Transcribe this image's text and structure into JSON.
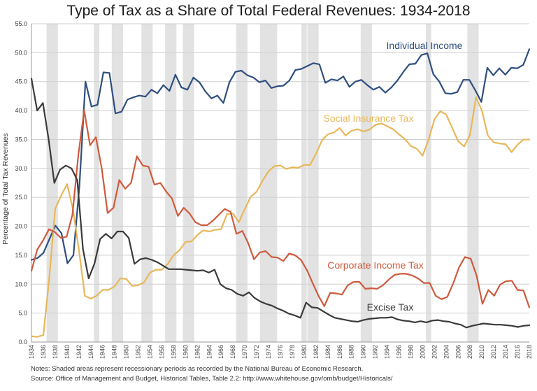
{
  "chart_data": {
    "type": "line",
    "title": "Type of Tax as a Share of Total Federal Revenues: 1934-2018",
    "xlabel": "",
    "ylabel": "Percentage of Total Tax Revenues",
    "ylim": [
      0,
      55
    ],
    "yticks": [
      "0.0",
      "5.0",
      "10.0",
      "15.0",
      "20.0",
      "25.0",
      "30.0",
      "35.0",
      "40.0",
      "45.0",
      "50.0",
      "55.0"
    ],
    "xlim": [
      1934,
      2018
    ],
    "xticks": [
      "1934",
      "1936",
      "1938",
      "1940",
      "1942",
      "1944",
      "1946",
      "1948",
      "1950",
      "1952",
      "1954",
      "1956",
      "1958",
      "1960",
      "1962",
      "1964",
      "1966",
      "1968",
      "1970",
      "1972",
      "1974",
      "1976",
      "1978",
      "1980",
      "1982",
      "1984",
      "1986",
      "1988",
      "1990",
      "1992",
      "1994",
      "1996",
      "1998",
      "2000",
      "2002",
      "2004",
      "2006",
      "2008",
      "2010",
      "2012",
      "2014",
      "2016",
      "2018"
    ],
    "grid": "horizontal",
    "recessions": [
      [
        1937,
        1938
      ],
      [
        1945,
        1945
      ],
      [
        1948,
        1949
      ],
      [
        1953,
        1954
      ],
      [
        1957,
        1958
      ],
      [
        1960,
        1961
      ],
      [
        1969,
        1970
      ],
      [
        1973,
        1975
      ],
      [
        1980,
        1980
      ],
      [
        1981,
        1982
      ],
      [
        1990,
        1991
      ],
      [
        2001,
        2001
      ],
      [
        2008,
        2009
      ]
    ],
    "series": [
      {
        "name": "Individual Income",
        "color": "#2e4f7f",
        "values": [
          14.2,
          14.5,
          15.4,
          17.8,
          20.1,
          18.8,
          13.6,
          15.0,
          27.0,
          45.0,
          40.7,
          41.0,
          46.6,
          46.5,
          39.5,
          39.8,
          41.9,
          42.3,
          42.6,
          42.4,
          43.6,
          43.0,
          44.4,
          43.4,
          46.2,
          44.0,
          43.6,
          45.7,
          44.9,
          43.3,
          42.1,
          42.6,
          41.3,
          44.9,
          46.7,
          46.9,
          46.1,
          45.7,
          44.9,
          45.2,
          43.9,
          44.2,
          44.3,
          45.2,
          47.0,
          47.2,
          47.7,
          48.2,
          48.0,
          44.8,
          45.4,
          45.2,
          45.9,
          44.1,
          45.0,
          45.3,
          44.4,
          43.6,
          44.1,
          43.1,
          44.0,
          45.2,
          46.7,
          48.0,
          48.1,
          49.6,
          49.9,
          46.3,
          45.0,
          43.0,
          42.9,
          43.2,
          45.3,
          45.3,
          43.5,
          41.5,
          47.4,
          46.1,
          47.3,
          46.2,
          47.4,
          47.3,
          47.9,
          50.6
        ]
      },
      {
        "name": "Social Insurance Tax",
        "color": "#e8b75a",
        "values": [
          1.0,
          0.9,
          1.2,
          11.0,
          23.0,
          25.3,
          27.3,
          23.0,
          16.0,
          8.0,
          7.5,
          8.0,
          9.0,
          9.0,
          9.6,
          11.0,
          10.9,
          9.7,
          9.8,
          10.3,
          12.0,
          12.5,
          12.5,
          13.5,
          15.0,
          15.9,
          17.3,
          17.4,
          18.5,
          19.3,
          19.1,
          19.4,
          19.5,
          22.1,
          22.2,
          20.7,
          23.0,
          25.1,
          26.0,
          27.9,
          29.5,
          30.4,
          30.5,
          29.9,
          30.2,
          30.1,
          30.6,
          30.6,
          32.5,
          34.8,
          35.9,
          36.2,
          37.0,
          35.7,
          36.5,
          36.8,
          36.4,
          36.7,
          37.5,
          37.8,
          37.3,
          36.8,
          35.9,
          35.1,
          33.9,
          33.4,
          32.2,
          35.0,
          38.5,
          39.9,
          39.3,
          37.0,
          34.7,
          33.8,
          35.8,
          42.3,
          40.0,
          35.7,
          34.5,
          34.3,
          34.2,
          32.8,
          34.1,
          35.0,
          35.0
        ]
      },
      {
        "name": "Corporate Income Tax",
        "color": "#cf5a3e",
        "values": [
          12.3,
          16.0,
          17.6,
          19.5,
          19.0,
          18.0,
          18.2,
          22.0,
          32.3,
          40.0,
          34.0,
          35.4,
          30.0,
          22.3,
          23.2,
          28.0,
          26.5,
          27.5,
          32.1,
          30.5,
          30.3,
          27.2,
          27.5,
          26.0,
          24.8,
          21.8,
          23.2,
          22.2,
          20.7,
          20.2,
          20.2,
          21.0,
          22.0,
          23.0,
          22.5,
          18.7,
          19.2,
          17.1,
          14.3,
          15.5,
          15.7,
          14.7,
          14.6,
          14.0,
          15.3,
          15.0,
          14.2,
          12.5,
          10.2,
          8.0,
          6.2,
          8.5,
          8.4,
          8.2,
          9.8,
          10.4,
          10.4,
          9.2,
          9.3,
          9.2,
          9.8,
          10.8,
          11.6,
          11.8,
          11.8,
          11.5,
          11.0,
          10.2,
          10.2,
          8.0,
          7.4,
          7.8,
          10.1,
          12.9,
          14.7,
          14.4,
          11.5,
          6.6,
          9.0,
          8.0,
          9.9,
          10.5,
          10.6,
          9.0,
          8.9,
          6.0
        ]
      },
      {
        "name": "Excise Tax",
        "color": "#3a3a3a",
        "values": [
          45.5,
          40.0,
          41.3,
          35.0,
          27.5,
          29.8,
          30.5,
          30.0,
          28.0,
          16.0,
          11.0,
          13.5,
          17.8,
          18.7,
          17.9,
          19.1,
          19.1,
          18.0,
          13.5,
          14.3,
          14.5,
          14.2,
          13.8,
          13.2,
          12.6,
          12.6,
          12.6,
          12.5,
          12.4,
          12.3,
          12.4,
          12.0,
          12.5,
          10.0,
          9.3,
          9.0,
          8.3,
          8.0,
          8.6,
          7.6,
          7.0,
          6.6,
          6.3,
          5.8,
          5.4,
          4.9,
          4.6,
          4.2,
          6.8,
          6.0,
          5.9,
          5.3,
          4.7,
          4.2,
          4.0,
          3.8,
          3.6,
          3.5,
          3.8,
          4.0,
          4.1,
          4.2,
          4.2,
          4.3,
          3.9,
          3.7,
          3.6,
          3.4,
          3.6,
          3.4,
          3.7,
          3.8,
          3.6,
          3.5,
          3.2,
          3.0,
          2.5,
          2.8,
          3.0,
          3.2,
          3.1,
          3.0,
          3.0,
          2.9,
          2.8,
          2.6,
          2.8,
          2.9
        ]
      }
    ],
    "annotations": [
      {
        "text": "Individual Income",
        "series": "Individual Income"
      },
      {
        "text": "Social Insurance Tax",
        "series": "Social Insurance Tax"
      },
      {
        "text": "Corporate Income Tax",
        "series": "Corporate Income Tax"
      },
      {
        "text": "Excise Tax",
        "series": "Excise Tax"
      }
    ]
  },
  "notes": {
    "line1": "Notes:  Shaded areas represent recessionary periods as recorded by the National Bureau of Economic Research.",
    "line2": "Source: Office of Management and Budget, Historical Tables, Table 2.2:  http://www.whitehouse.gov/omb/budget/Historicals/"
  }
}
